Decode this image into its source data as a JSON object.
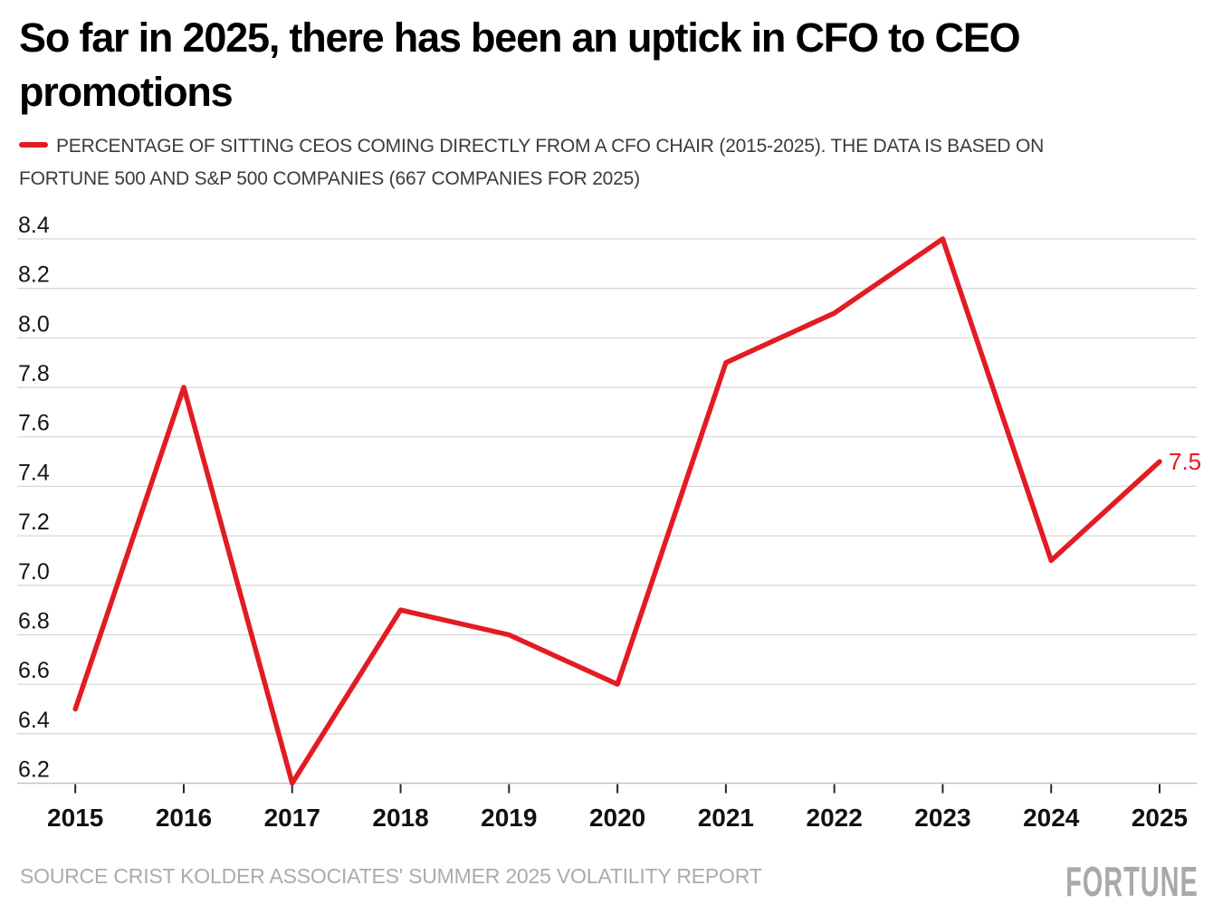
{
  "header": {
    "title": "So far in 2025, there has been an uptick in CFO to CEO promotions"
  },
  "legend": {
    "swatch_color": "#e31b23",
    "label": "PERCENTAGE OF SITTING CEOS COMING DIRECTLY FROM A CFO CHAIR (2015-2025). THE DATA IS BASED ON FORTUNE 500 AND S&P 500 COMPANIES (667 COMPANIES FOR 2025)"
  },
  "chart_data": {
    "type": "line",
    "title": "So far in 2025, there has been an uptick in CFO to CEO promotions",
    "categories": [
      "2015",
      "2016",
      "2017",
      "2018",
      "2019",
      "2020",
      "2021",
      "2022",
      "2023",
      "2024",
      "2025"
    ],
    "series": [
      {
        "name": "Percentage of sitting CEOs coming directly from a CFO chair (2015-2025)",
        "values": [
          6.5,
          7.8,
          6.2,
          6.9,
          6.8,
          6.6,
          7.9,
          8.1,
          8.4,
          7.1,
          7.5
        ]
      }
    ],
    "ylim": [
      6.2,
      8.4
    ],
    "ytick_step": 0.2,
    "yticks": [
      "6.2",
      "6.4",
      "6.6",
      "6.8",
      "7.0",
      "7.2",
      "7.4",
      "7.6",
      "7.8",
      "8.0",
      "8.2",
      "8.4"
    ],
    "grid": true,
    "legend_position": "top",
    "end_label": "7.5",
    "line_color": "#e31b23",
    "grid_color": "#d8d8d8",
    "baseline_color": "#c4c4c4",
    "tick_color": "#262626",
    "axis_text_color": "#141414"
  },
  "footer": {
    "source": "SOURCE CRIST KOLDER ASSOCIATES' SUMMER 2025 VOLATILITY REPORT",
    "brand": "FORTUNE"
  }
}
